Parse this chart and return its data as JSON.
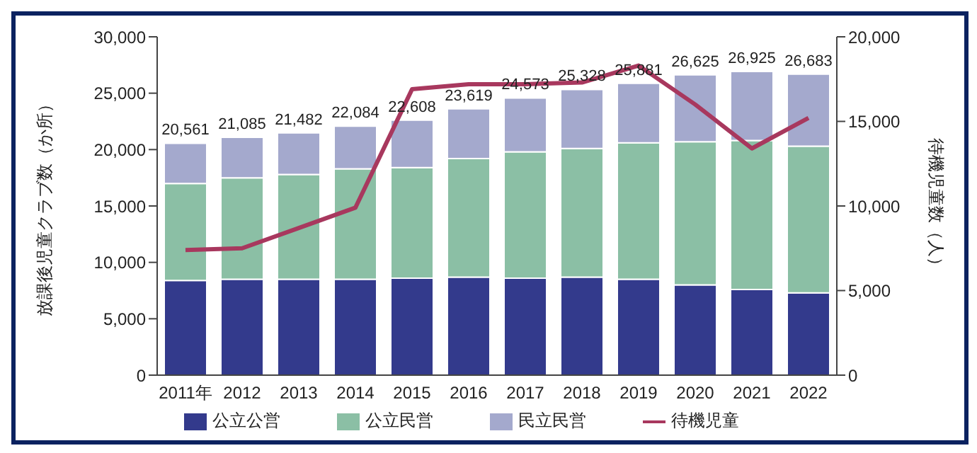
{
  "chart_data": {
    "type": "bar",
    "stacked": true,
    "categories": [
      "2011年",
      "2012",
      "2013",
      "2014",
      "2015",
      "2016",
      "2017",
      "2018",
      "2019",
      "2020",
      "2021",
      "2022"
    ],
    "series": [
      {
        "name": "公立公営",
        "color": "#333a8c",
        "values": [
          8400,
          8500,
          8500,
          8500,
          8600,
          8700,
          8600,
          8700,
          8500,
          8000,
          7600,
          7300
        ]
      },
      {
        "name": "公立民営",
        "color": "#8bbfa5",
        "values": [
          8600,
          9000,
          9300,
          9800,
          9800,
          10500,
          11200,
          11400,
          12100,
          12700,
          13200,
          13000
        ]
      },
      {
        "name": "民立民営",
        "color": "#a4a9cd",
        "values": [
          3561,
          3585,
          3682,
          3784,
          4208,
          4419,
          4773,
          5228,
          5281,
          5925,
          6125,
          6383
        ]
      },
      {
        "name": "待機児童",
        "type": "line",
        "axis": "y2",
        "color": "#a8385e",
        "values": [
          7400,
          7500,
          8700,
          9900,
          16900,
          17200,
          17200,
          17300,
          18300,
          16000,
          13400,
          15200
        ]
      }
    ],
    "totals": [
      "20,561",
      "21,085",
      "21,482",
      "22,084",
      "22,608",
      "23,619",
      "24,573",
      "25,328",
      "25,881",
      "26,625",
      "26,925",
      "26,683"
    ],
    "ylabel": "放課後児童クラブ数（か所）",
    "y2label": "待機児童数（人）",
    "ylim": [
      0,
      30000
    ],
    "yticks": [
      0,
      {
        "value": 5000,
        "label": "5,000"
      },
      {
        "value": 10000,
        "label": "10,000"
      },
      {
        "value": 15000,
        "label": "15,000"
      },
      {
        "value": 20000,
        "label": "20,000"
      },
      {
        "value": 25000,
        "label": "25,000"
      },
      {
        "value": 30000,
        "label": "30,000"
      }
    ],
    "y2lim": [
      0,
      20000
    ],
    "y2ticks": [
      0,
      {
        "value": 5000,
        "label": "5,000"
      },
      {
        "value": 10000,
        "label": "10,000"
      },
      {
        "value": 15000,
        "label": "15,000"
      },
      {
        "value": 20000,
        "label": "20,000"
      }
    ],
    "grid": false,
    "legend": "bottom"
  }
}
